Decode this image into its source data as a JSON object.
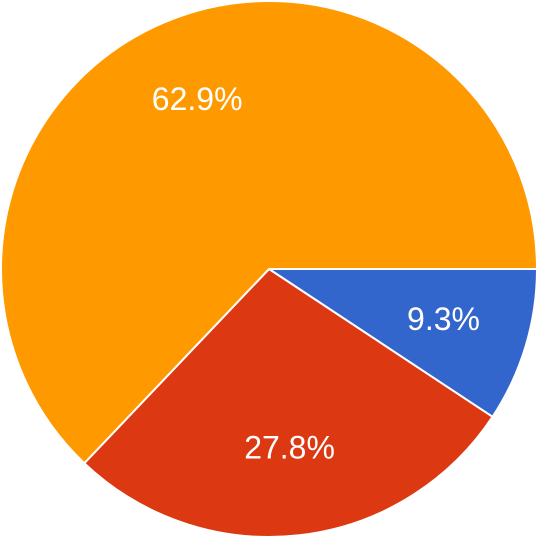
{
  "chart_data": {
    "type": "pie",
    "title": "",
    "start_direction": "east",
    "direction": "clockwise",
    "slices": [
      {
        "label": "9.3%",
        "value": 9.3,
        "color": "#3366cc"
      },
      {
        "label": "27.8%",
        "value": 27.8,
        "color": "#dc3912"
      },
      {
        "label": "62.9%",
        "value": 62.9,
        "color": "#ff9900"
      }
    ]
  }
}
